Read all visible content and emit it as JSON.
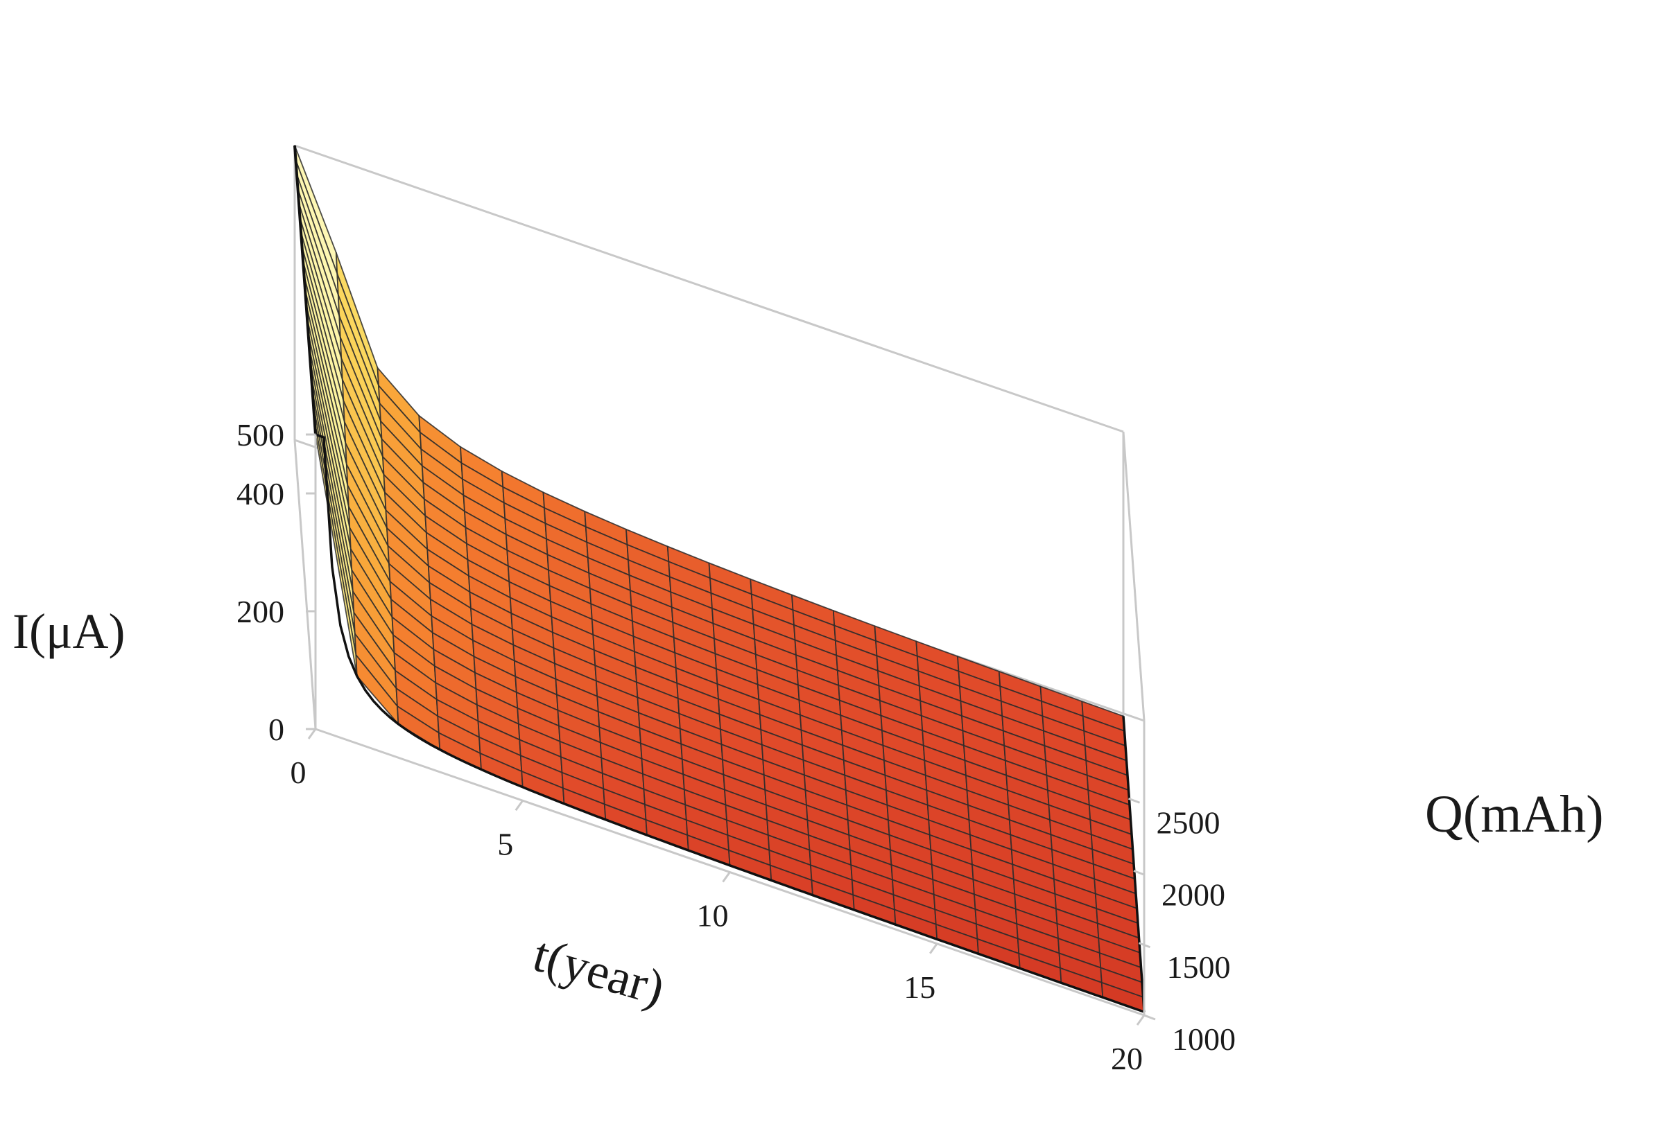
{
  "chart_data": {
    "type": "surface",
    "title": "",
    "xlabel": "t(year)",
    "ylabel": "Q(mAh)",
    "zlabel": "I(μA)",
    "x": [
      0,
      1,
      2,
      3,
      4,
      5,
      6,
      7,
      8,
      9,
      10,
      11,
      12,
      13,
      14,
      15,
      16,
      17,
      18,
      19,
      20
    ],
    "y": [
      1000,
      1100,
      1200,
      1300,
      1400,
      1500,
      1600,
      1700,
      1800,
      1900,
      2000,
      2100,
      2200,
      2300,
      2400,
      2500,
      2600,
      2700,
      2800,
      2900,
      3000
    ],
    "z_function": "I = Q / (8.76 * t), values clipped to the z-axis range",
    "xlim": [
      0,
      20
    ],
    "ylim": [
      1000,
      3000
    ],
    "zlim": [
      0,
      500
    ],
    "x_ticks": [
      "0",
      "5",
      "10",
      "15",
      "20"
    ],
    "y_ticks": [
      "1000",
      "1500",
      "2000",
      "2500"
    ],
    "z_ticks": [
      "0",
      "200",
      "400",
      "500"
    ],
    "colormap": [
      "#c6281e",
      "#e04a2a",
      "#f47b2e",
      "#f9a73a",
      "#fbd65b",
      "#fdf39a",
      "#fffdd8"
    ],
    "mesh_color": "#2b2b2b",
    "box_color": "#c8c8c8"
  }
}
